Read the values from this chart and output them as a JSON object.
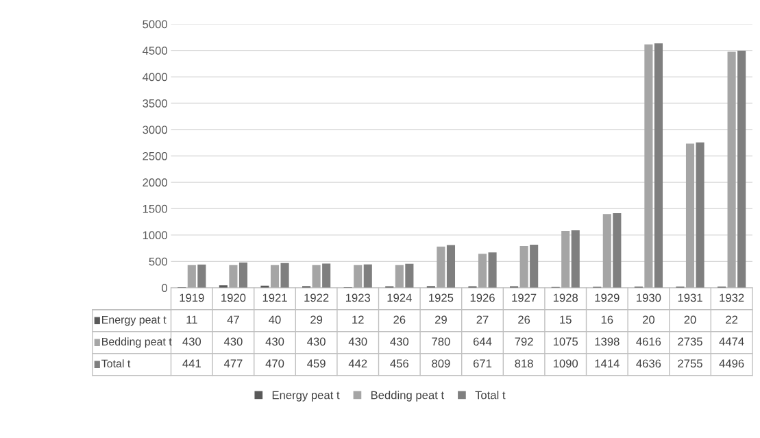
{
  "chart_data": {
    "type": "bar",
    "categories": [
      "1919",
      "1920",
      "1921",
      "1922",
      "1923",
      "1924",
      "1925",
      "1926",
      "1927",
      "1928",
      "1929",
      "1930",
      "1931",
      "1932"
    ],
    "series": [
      {
        "name": "Energy peat t",
        "color": "#595959",
        "values": [
          11,
          47,
          40,
          29,
          12,
          26,
          29,
          27,
          26,
          15,
          16,
          20,
          20,
          22
        ]
      },
      {
        "name": "Bedding peat t",
        "color": "#a5a5a5",
        "values": [
          430,
          430,
          430,
          430,
          430,
          430,
          780,
          644,
          792,
          1075,
          1398,
          4616,
          2735,
          4474
        ]
      },
      {
        "name": "Total t",
        "color": "#7f7f7f",
        "values": [
          441,
          477,
          470,
          459,
          442,
          456,
          809,
          671,
          818,
          1090,
          1414,
          4636,
          2755,
          4496
        ]
      }
    ],
    "ylim": [
      0,
      5000
    ],
    "yticks": [
      0,
      500,
      1000,
      1500,
      2000,
      2500,
      3000,
      3500,
      4000,
      4500,
      5000
    ],
    "grid": "y",
    "legend": "bottom",
    "data_labels": true
  }
}
